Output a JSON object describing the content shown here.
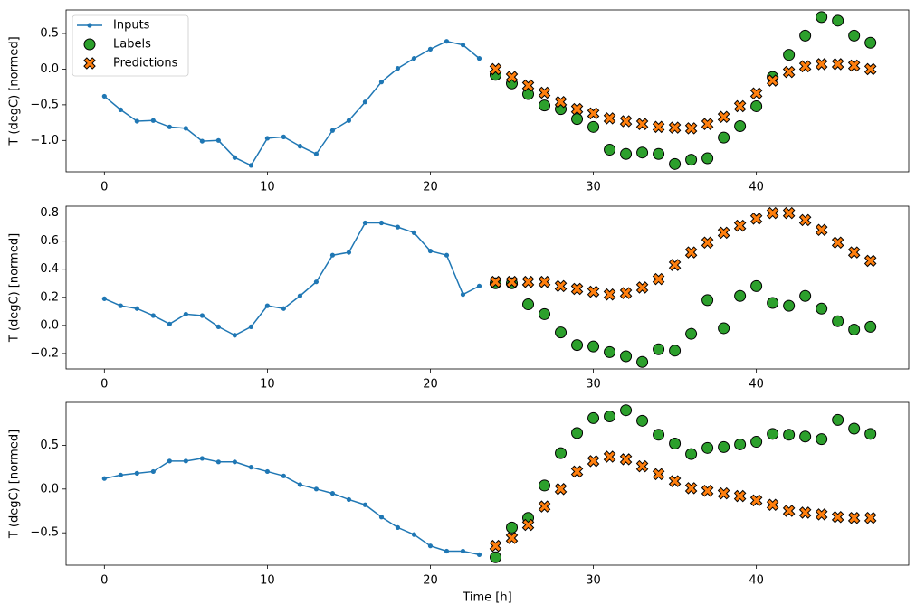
{
  "chart_data": [
    {
      "type": "line",
      "ylabel": "T (degC) [normed]",
      "xlim": [
        -2.35,
        49.35
      ],
      "ylim": [
        -1.44,
        0.83
      ],
      "xticks": [
        0,
        10,
        20,
        30,
        40
      ],
      "yticks": [
        {
          "value": -1.0,
          "label": "−1.0"
        },
        {
          "value": -0.5,
          "label": "−0.5"
        },
        {
          "value": 0.0,
          "label": "0.0"
        },
        {
          "value": 0.5,
          "label": "0.5"
        }
      ],
      "legend": "upper left",
      "series": [
        {
          "name": "Inputs",
          "type": "line",
          "marker": "dot",
          "color": "#1f77b4",
          "x": [
            0,
            1,
            2,
            3,
            4,
            5,
            6,
            7,
            8,
            9,
            10,
            11,
            12,
            13,
            14,
            15,
            16,
            17,
            18,
            19,
            20,
            21,
            22,
            23
          ],
          "values": [
            -0.38,
            -0.57,
            -0.73,
            -0.72,
            -0.81,
            -0.83,
            -1.01,
            -1.0,
            -1.24,
            -1.35,
            -0.97,
            -0.95,
            -1.08,
            -1.19,
            -0.86,
            -0.72,
            -0.46,
            -0.18,
            0.01,
            0.15,
            0.28,
            0.39,
            0.34,
            0.15
          ]
        },
        {
          "name": "Labels",
          "type": "scatter",
          "marker": "circle",
          "color": "#2ca02c",
          "x": [
            24,
            25,
            26,
            27,
            28,
            29,
            30,
            31,
            32,
            33,
            34,
            35,
            36,
            37,
            38,
            39,
            40,
            41,
            42,
            43,
            44,
            45,
            46,
            47
          ],
          "values": [
            -0.08,
            -0.2,
            -0.35,
            -0.51,
            -0.56,
            -0.7,
            -0.81,
            -1.13,
            -1.19,
            -1.17,
            -1.19,
            -1.33,
            -1.27,
            -1.25,
            -0.96,
            -0.8,
            -0.52,
            -0.11,
            0.2,
            0.47,
            0.73,
            0.68,
            0.47,
            0.37
          ]
        },
        {
          "name": "Predictions",
          "type": "scatter",
          "marker": "x",
          "color": "#ff7f0e",
          "x": [
            24,
            25,
            26,
            27,
            28,
            29,
            30,
            31,
            32,
            33,
            34,
            35,
            36,
            37,
            38,
            39,
            40,
            41,
            42,
            43,
            44,
            45,
            46,
            47
          ],
          "values": [
            0.0,
            -0.11,
            -0.23,
            -0.33,
            -0.46,
            -0.56,
            -0.62,
            -0.69,
            -0.73,
            -0.77,
            -0.81,
            -0.82,
            -0.83,
            -0.77,
            -0.67,
            -0.52,
            -0.34,
            -0.16,
            -0.04,
            0.04,
            0.07,
            0.07,
            0.05,
            0.0
          ]
        }
      ]
    },
    {
      "type": "line",
      "ylabel": "T (degC) [normed]",
      "xlim": [
        -2.35,
        49.35
      ],
      "ylim": [
        -0.31,
        0.849
      ],
      "xticks": [
        0,
        10,
        20,
        30,
        40
      ],
      "yticks": [
        {
          "value": -0.2,
          "label": "−0.2"
        },
        {
          "value": 0.0,
          "label": "0.0"
        },
        0.2,
        0.4,
        0.6,
        0.8
      ],
      "series": [
        {
          "type": "line",
          "marker": "dot",
          "color": "#1f77b4",
          "x": [
            0,
            1,
            2,
            3,
            4,
            5,
            6,
            7,
            8,
            9,
            10,
            11,
            12,
            13,
            14,
            15,
            16,
            17,
            18,
            19,
            20,
            21,
            22,
            23
          ],
          "values": [
            0.19,
            0.14,
            0.12,
            0.07,
            0.01,
            0.08,
            0.07,
            -0.01,
            -0.07,
            -0.01,
            0.14,
            0.12,
            0.21,
            0.31,
            0.5,
            0.52,
            0.73,
            0.73,
            0.7,
            0.66,
            0.53,
            0.5,
            0.22,
            0.28
          ]
        },
        {
          "type": "scatter",
          "marker": "circle",
          "color": "#2ca02c",
          "x": [
            24,
            25,
            26,
            27,
            28,
            29,
            30,
            31,
            32,
            33,
            34,
            35,
            36,
            37,
            38,
            39,
            40,
            41,
            42,
            43,
            44,
            45,
            46,
            47
          ],
          "values": [
            0.3,
            0.3,
            0.15,
            0.08,
            -0.05,
            -0.14,
            -0.15,
            -0.19,
            -0.22,
            -0.26,
            -0.17,
            -0.18,
            -0.06,
            0.18,
            -0.02,
            0.21,
            0.28,
            0.16,
            0.14,
            0.21,
            0.12,
            0.03,
            -0.03,
            -0.01
          ]
        },
        {
          "type": "scatter",
          "marker": "x",
          "color": "#ff7f0e",
          "x": [
            24,
            25,
            26,
            27,
            28,
            29,
            30,
            31,
            32,
            33,
            34,
            35,
            36,
            37,
            38,
            39,
            40,
            41,
            42,
            43,
            44,
            45,
            46,
            47
          ],
          "values": [
            0.31,
            0.31,
            0.31,
            0.31,
            0.28,
            0.26,
            0.24,
            0.22,
            0.23,
            0.27,
            0.33,
            0.43,
            0.52,
            0.59,
            0.66,
            0.71,
            0.76,
            0.8,
            0.8,
            0.75,
            0.68,
            0.59,
            0.52,
            0.46
          ]
        }
      ]
    },
    {
      "type": "line",
      "ylabel": "T (degC) [normed]",
      "xlabel": "Time [h]",
      "xlim": [
        -2.35,
        49.35
      ],
      "ylim": [
        -0.87,
        0.99
      ],
      "xticks": [
        0,
        10,
        20,
        30,
        40
      ],
      "yticks": [
        {
          "value": -0.5,
          "label": "−0.5"
        },
        {
          "value": 0.0,
          "label": "0.0"
        },
        0.5
      ],
      "series": [
        {
          "type": "line",
          "marker": "dot",
          "color": "#1f77b4",
          "x": [
            0,
            1,
            2,
            3,
            4,
            5,
            6,
            7,
            8,
            9,
            10,
            11,
            12,
            13,
            14,
            15,
            16,
            17,
            18,
            19,
            20,
            21,
            22,
            23
          ],
          "values": [
            0.12,
            0.16,
            0.18,
            0.2,
            0.32,
            0.32,
            0.35,
            0.31,
            0.31,
            0.25,
            0.2,
            0.15,
            0.05,
            0.0,
            -0.05,
            -0.12,
            -0.18,
            -0.32,
            -0.44,
            -0.52,
            -0.65,
            -0.71,
            -0.71,
            -0.75
          ]
        },
        {
          "type": "scatter",
          "marker": "circle",
          "color": "#2ca02c",
          "x": [
            24,
            25,
            26,
            27,
            28,
            29,
            30,
            31,
            32,
            33,
            34,
            35,
            36,
            37,
            38,
            39,
            40,
            41,
            42,
            43,
            44,
            45,
            46,
            47
          ],
          "values": [
            -0.78,
            -0.44,
            -0.33,
            0.04,
            0.41,
            0.64,
            0.81,
            0.83,
            0.9,
            0.78,
            0.62,
            0.52,
            0.4,
            0.47,
            0.48,
            0.51,
            0.54,
            0.63,
            0.62,
            0.6,
            0.57,
            0.79,
            0.69,
            0.63
          ]
        },
        {
          "type": "scatter",
          "marker": "x",
          "color": "#ff7f0e",
          "x": [
            24,
            25,
            26,
            27,
            28,
            29,
            30,
            31,
            32,
            33,
            34,
            35,
            36,
            37,
            38,
            39,
            40,
            41,
            42,
            43,
            44,
            45,
            46,
            47
          ],
          "values": [
            -0.65,
            -0.56,
            -0.41,
            -0.2,
            0.0,
            0.2,
            0.32,
            0.37,
            0.34,
            0.26,
            0.17,
            0.09,
            0.01,
            -0.02,
            -0.05,
            -0.08,
            -0.13,
            -0.18,
            -0.25,
            -0.27,
            -0.29,
            -0.32,
            -0.33,
            -0.33
          ]
        }
      ]
    }
  ]
}
